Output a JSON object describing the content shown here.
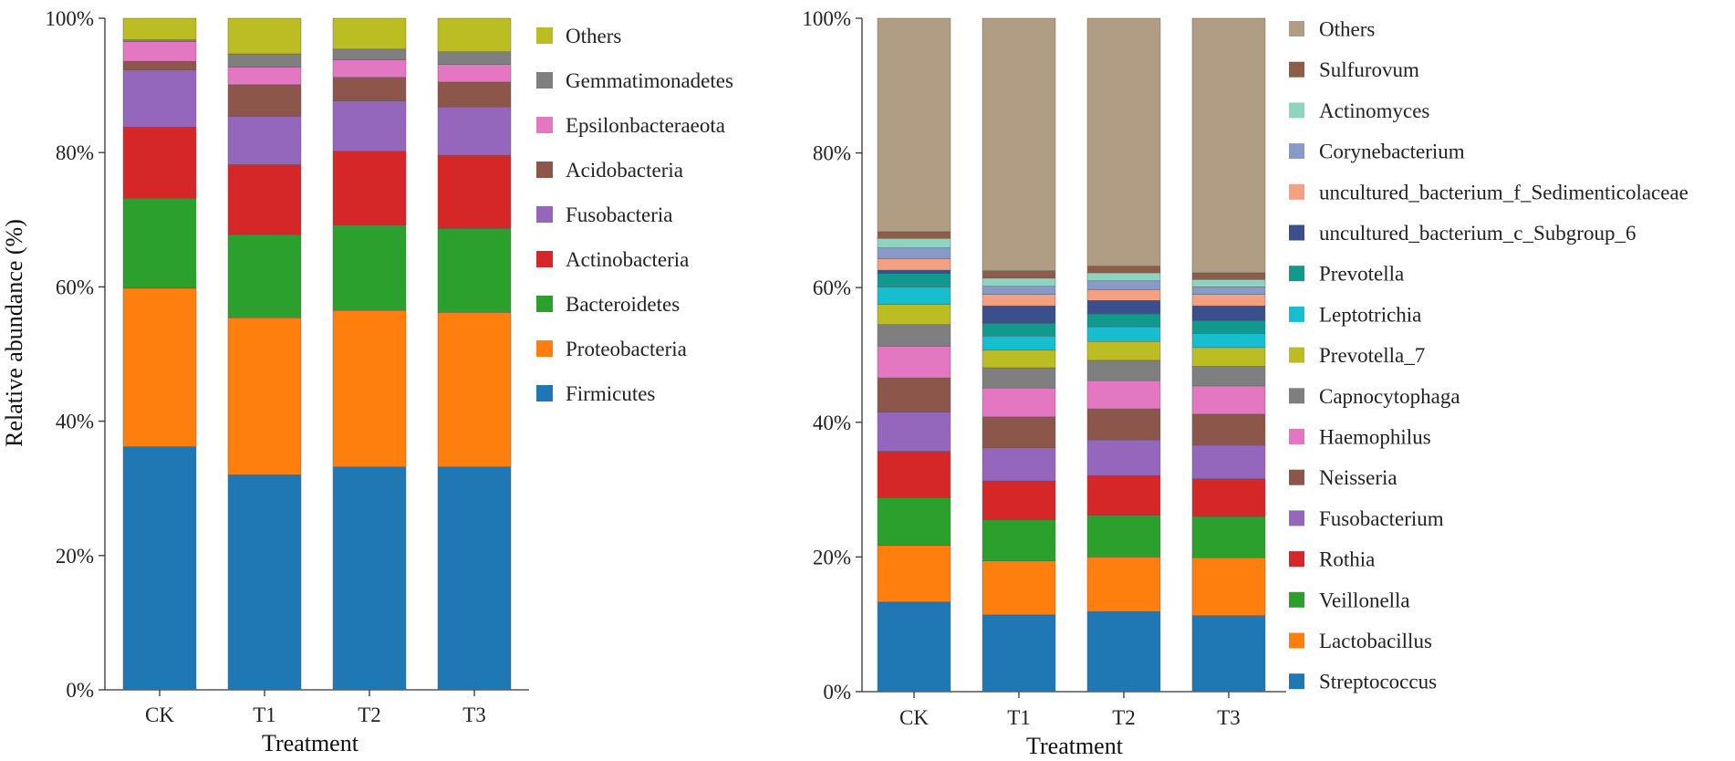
{
  "chart_data": [
    {
      "type": "bar",
      "stacked": true,
      "title": "",
      "xlabel": "Treatment",
      "ylabel": "Relative abundance (%)",
      "ylim": [
        0,
        100
      ],
      "yticks": [
        "0%",
        "20%",
        "40%",
        "60%",
        "80%",
        "100%"
      ],
      "categories": [
        "CK",
        "T1",
        "T2",
        "T3"
      ],
      "legend_position": "right",
      "series": [
        {
          "name": "Firmicutes",
          "color": "#1f77b4",
          "values": [
            36.2,
            32.0,
            33.2,
            33.2
          ]
        },
        {
          "name": "Proteobacteria",
          "color": "#ff7f0e",
          "values": [
            23.6,
            23.4,
            23.3,
            23.0
          ]
        },
        {
          "name": "Bacteroidetes",
          "color": "#2ca02c",
          "values": [
            13.4,
            12.4,
            12.7,
            12.5
          ]
        },
        {
          "name": "Actinobacteria",
          "color": "#d62728",
          "values": [
            10.6,
            10.4,
            11.0,
            10.9
          ]
        },
        {
          "name": "Fusobacteria",
          "color": "#9467bd",
          "values": [
            8.5,
            7.2,
            7.5,
            7.2
          ]
        },
        {
          "name": "Acidobacteria",
          "color": "#8c564b",
          "values": [
            1.3,
            4.7,
            3.5,
            3.7
          ]
        },
        {
          "name": "Epsilonbacteraeota",
          "color": "#e377c2",
          "values": [
            2.9,
            2.6,
            2.6,
            2.6
          ]
        },
        {
          "name": "Gemmatimonadetes",
          "color": "#7f7f7f",
          "values": [
            0.3,
            2.0,
            1.6,
            1.9
          ]
        },
        {
          "name": "Others",
          "color": "#bcbd22",
          "values": [
            3.2,
            5.3,
            4.6,
            5.0
          ]
        }
      ]
    },
    {
      "type": "bar",
      "stacked": true,
      "title": "",
      "xlabel": "Treatment",
      "ylabel": "",
      "ylim": [
        0,
        100
      ],
      "yticks": [
        "0%",
        "20%",
        "40%",
        "60%",
        "80%",
        "100%"
      ],
      "categories": [
        "CK",
        "T1",
        "T2",
        "T3"
      ],
      "legend_position": "right",
      "series": [
        {
          "name": "Streptococcus",
          "color": "#1f77b4",
          "values": [
            13.3,
            11.4,
            11.9,
            11.3
          ]
        },
        {
          "name": "Lactobacillus",
          "color": "#ff7f0e",
          "values": [
            8.4,
            8.0,
            8.1,
            8.6
          ]
        },
        {
          "name": "Veillonella",
          "color": "#2ca02c",
          "values": [
            7.1,
            6.1,
            6.2,
            6.1
          ]
        },
        {
          "name": "Rothia",
          "color": "#d62728",
          "values": [
            6.9,
            5.8,
            5.9,
            5.6
          ]
        },
        {
          "name": "Fusobacterium",
          "color": "#9467bd",
          "values": [
            5.8,
            4.9,
            5.3,
            5.0
          ]
        },
        {
          "name": "Neisseria",
          "color": "#8c564b",
          "values": [
            5.1,
            4.6,
            4.6,
            4.6
          ]
        },
        {
          "name": "Haemophilus",
          "color": "#e377c2",
          "values": [
            4.7,
            4.3,
            4.2,
            4.2
          ]
        },
        {
          "name": "Capnocytophaga",
          "color": "#7f7f7f",
          "values": [
            3.2,
            3.0,
            3.0,
            2.9
          ]
        },
        {
          "name": "Prevotella_7",
          "color": "#bcbd22",
          "values": [
            3.0,
            2.6,
            2.8,
            2.8
          ]
        },
        {
          "name": "Leptotrichia",
          "color": "#17becf",
          "values": [
            2.6,
            2.1,
            2.2,
            2.1
          ]
        },
        {
          "name": "Prevotella",
          "color": "#11998e",
          "values": [
            2.0,
            1.9,
            1.9,
            1.9
          ]
        },
        {
          "name": "uncultured_bacterium_c_Subgroup_6",
          "color": "#3a4f8c",
          "values": [
            0.5,
            2.6,
            2.0,
            2.2
          ]
        },
        {
          "name": "uncultured_bacterium_f_Sedimenticolaceae",
          "color": "#f4a082",
          "values": [
            1.7,
            1.7,
            1.6,
            1.7
          ]
        },
        {
          "name": "Corynebacterium",
          "color": "#8a9ac8",
          "values": [
            1.6,
            1.2,
            1.3,
            1.1
          ]
        },
        {
          "name": "Actinomyces",
          "color": "#8ed4c0",
          "values": [
            1.4,
            1.2,
            1.2,
            1.1
          ]
        },
        {
          "name": "Sulfurovum",
          "color": "#8c5e4a",
          "values": [
            1.0,
            1.1,
            1.0,
            1.0
          ]
        },
        {
          "name": "Others",
          "color": "#b09d84",
          "values": [
            31.7,
            37.5,
            36.8,
            37.8
          ]
        }
      ]
    }
  ]
}
